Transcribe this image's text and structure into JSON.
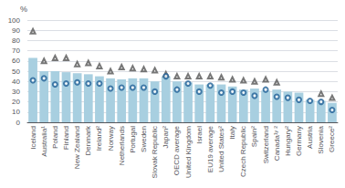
{
  "chart_data": {
    "type": "bar",
    "ylabel": "%",
    "categories": [
      "Iceland",
      "Australia¹",
      "Poland",
      "Finland",
      "New Zealand",
      "Denmark",
      "Ireland²",
      "Norway",
      "Netherlands",
      "Portugal",
      "Sweden",
      "Slovak Republic",
      "Japan²",
      "OECD average",
      "United Kingdom",
      "Israel",
      "EU19 average",
      "United States²",
      "Italy",
      "Czech Republic",
      "Spain²",
      "Switzerland",
      "Canada¹ʸ ²",
      "Hungary²",
      "Germany",
      "Austria",
      "Slovenia",
      "Greece²"
    ],
    "series": [
      {
        "type": "bar",
        "color": "#a8cfe0",
        "values": [
          63,
          50,
          50,
          49,
          48,
          47,
          45,
          43,
          42,
          43,
          43,
          40,
          45,
          40,
          39,
          37,
          37,
          37,
          35,
          32,
          33,
          31,
          32,
          30,
          29,
          22,
          21,
          19
        ]
      },
      {
        "type": "scatter",
        "marker": "triangle",
        "color": "#555555",
        "values": [
          89,
          60,
          63,
          63,
          57,
          58,
          55,
          50,
          54,
          53,
          52,
          51,
          47,
          45,
          45,
          45,
          45,
          44,
          42,
          41,
          40,
          42,
          39,
          null,
          null,
          null,
          28,
          24
        ]
      },
      {
        "type": "scatter",
        "marker": "circle",
        "color": "#1e5f96",
        "values": [
          41,
          43,
          37,
          38,
          39,
          38,
          38,
          33,
          34,
          34,
          34,
          30,
          45,
          32,
          38,
          30,
          36,
          29,
          30,
          29,
          26,
          32,
          25,
          24,
          22,
          21,
          20,
          12
        ]
      }
    ],
    "ylim": [
      0,
      100
    ],
    "yticks": [
      0,
      10,
      20,
      30,
      40,
      50,
      60,
      70,
      80,
      90,
      100
    ],
    "grid": true
  }
}
